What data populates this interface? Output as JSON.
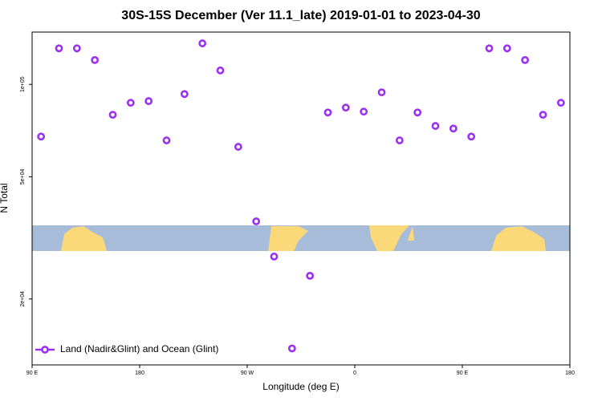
{
  "chart_data": {
    "type": "scatter",
    "title": "30S-15S December (Ver 11.1_late)   2019-01-01 to 2023-04-30",
    "x_label": "Longitude (deg E)",
    "y_label": "N Total",
    "log_y": true,
    "grid": false,
    "legend": "bottom-left",
    "xlim": [
      90,
      540
    ],
    "xticks": [
      {
        "value": 90,
        "label": "90 E"
      },
      {
        "value": 180,
        "label": "180"
      },
      {
        "value": 270,
        "label": "90 W"
      },
      {
        "value": 360,
        "label": "0"
      },
      {
        "value": 450,
        "label": "90 E"
      },
      {
        "value": 540,
        "label": "180"
      }
    ],
    "ylim": [
      12200,
      148000
    ],
    "yticks": [
      {
        "value": 20000,
        "label": "2e+04"
      },
      {
        "value": 50000,
        "label": "5e+04"
      },
      {
        "value": 100000,
        "label": "1e+05"
      }
    ],
    "series": [
      {
        "name": "Land (Nadir&Glint) and Ocean (Glint)",
        "color": "#9b30f0",
        "x": [
          97.5,
          112.5,
          127.5,
          142.5,
          157.5,
          172.5,
          187.5,
          202.5,
          217.5,
          232.5,
          247.5,
          262.5,
          277.5,
          292.5,
          307.5,
          322.5,
          337.5,
          352.5,
          367.5,
          382.5,
          397.5,
          412.5,
          427.5,
          442.5,
          457.5,
          472.5,
          487.5,
          502.5,
          517.5,
          532.5
        ],
        "values": [
          67600,
          131000,
          131000,
          120000,
          79600,
          87100,
          88200,
          65700,
          93000,
          136000,
          111000,
          62600,
          35800,
          27500,
          13800,
          23800,
          81000,
          84000,
          81500,
          94200,
          65700,
          81000,
          73200,
          71800,
          67600,
          131000,
          131000,
          120000,
          79600,
          87100
        ]
      }
    ]
  }
}
